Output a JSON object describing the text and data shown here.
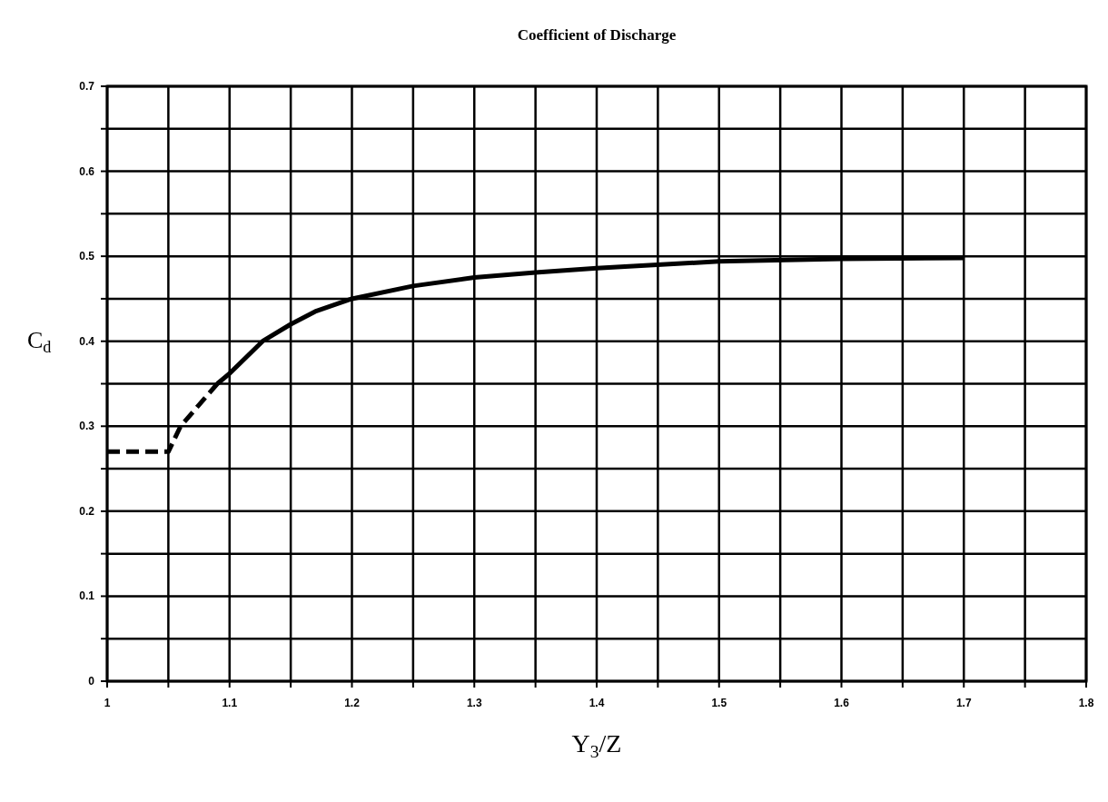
{
  "chart_data": {
    "type": "line",
    "title": "Coefficient of Discharge",
    "xlabel": "Y$_{3}$/Z",
    "ylabel": "C$_{d}$",
    "xlim": [
      1,
      1.8
    ],
    "ylim": [
      0,
      0.7
    ],
    "xticks": [
      1,
      {
        "value": 1.05,
        "label": null
      },
      1.1,
      {
        "value": 1.15,
        "label": null
      },
      1.2,
      {
        "value": 1.25,
        "label": null
      },
      1.3,
      {
        "value": 1.35,
        "label": null
      },
      1.4,
      {
        "value": 1.45,
        "label": null
      },
      1.5,
      {
        "value": 1.55,
        "label": null
      },
      1.6,
      {
        "value": 1.65,
        "label": null
      },
      1.7,
      {
        "value": 1.75,
        "label": null
      },
      1.8
    ],
    "yticks": [
      0,
      {
        "value": 0.05,
        "label": null
      },
      0.1,
      {
        "value": 0.15,
        "label": null
      },
      0.2,
      {
        "value": 0.25,
        "label": null
      },
      0.3,
      {
        "value": 0.35,
        "label": null
      },
      0.4,
      {
        "value": 0.45,
        "label": null
      },
      0.5,
      {
        "value": 0.55,
        "label": null
      },
      0.6,
      {
        "value": 0.65,
        "label": null
      },
      0.7
    ],
    "grid": true,
    "marker": "none",
    "series": [
      {
        "color": "#000000",
        "line_style": "dashed",
        "x": [
          1,
          1.05,
          1.06,
          1.075,
          1.09
        ],
        "values": [
          0.27,
          0.27,
          0.3,
          0.325,
          0.35
        ]
      },
      {
        "color": "#000000",
        "line_style": "solid",
        "x": [
          1.09,
          1.1,
          1.127,
          1.15,
          1.17,
          1.2,
          1.25,
          1.3,
          1.35,
          1.4,
          1.5,
          1.6,
          1.7
        ],
        "values": [
          0.35,
          0.362,
          0.4,
          0.42,
          0.435,
          0.45,
          0.465,
          0.475,
          0.481,
          0.486,
          0.494,
          0.497,
          0.498
        ]
      }
    ]
  }
}
